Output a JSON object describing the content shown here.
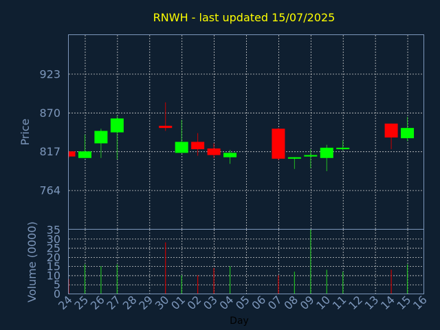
{
  "chart_data": {
    "type": "candlestick",
    "title": "RNWH - last updated 15/07/2025",
    "xlabel": "Day",
    "ylabel_price": "Price",
    "ylabel_volume": "Volume (0000)",
    "x_ticks": [
      "24",
      "25",
      "26",
      "27",
      "28",
      "29",
      "30",
      "01",
      "02",
      "03",
      "04",
      "05",
      "06",
      "07",
      "08",
      "09",
      "10",
      "11",
      "12",
      "13",
      "14",
      "15",
      "16"
    ],
    "price_ticks": [
      764,
      817,
      870,
      923
    ],
    "price_ylim": [
      711,
      976
    ],
    "volume_ticks": [
      0,
      5,
      10,
      15,
      20,
      25,
      30,
      35
    ],
    "volume_ylim": [
      0,
      35
    ],
    "grid": true,
    "colors": {
      "up": "#00ff00",
      "down": "#ff0000",
      "title": "#ffff00",
      "axis": "#7d97bb",
      "background": "#0f1f30"
    },
    "candles": [
      {
        "day": "24",
        "index": 0,
        "open": 817,
        "close": 810,
        "high": 817,
        "low": 808,
        "volume": 8
      },
      {
        "day": "25",
        "index": 1,
        "open": 808,
        "close": 817,
        "high": 840,
        "low": 808,
        "volume": 16
      },
      {
        "day": "26",
        "index": 2,
        "open": 828,
        "close": 845,
        "high": 848,
        "low": 808,
        "volume": 15
      },
      {
        "day": "27",
        "index": 3,
        "open": 843,
        "close": 862,
        "high": 866,
        "low": 806,
        "volume": 16
      },
      {
        "day": "30",
        "index": 6,
        "open": 852,
        "close": 849,
        "high": 884,
        "low": 845,
        "volume": 28
      },
      {
        "day": "01",
        "index": 7,
        "open": 815,
        "close": 830,
        "high": 860,
        "low": 815,
        "volume": 10
      },
      {
        "day": "02",
        "index": 8,
        "open": 830,
        "close": 820,
        "high": 842,
        "low": 811,
        "volume": 10
      },
      {
        "day": "03",
        "index": 9,
        "open": 821,
        "close": 812,
        "high": 828,
        "low": 808,
        "volume": 14
      },
      {
        "day": "04",
        "index": 10,
        "open": 809,
        "close": 815,
        "high": 819,
        "low": 800,
        "volume": 15
      },
      {
        "day": "07",
        "index": 13,
        "open": 848,
        "close": 807,
        "high": 849,
        "low": 805,
        "volume": 10
      },
      {
        "day": "08",
        "index": 14,
        "open": 807,
        "close": 809,
        "high": 809,
        "low": 793,
        "volume": 12
      },
      {
        "day": "09",
        "index": 15,
        "open": 810,
        "close": 812,
        "high": 820,
        "low": 794,
        "volume": 35
      },
      {
        "day": "10",
        "index": 16,
        "open": 808,
        "close": 822,
        "high": 826,
        "low": 790,
        "volume": 13
      },
      {
        "day": "11",
        "index": 17,
        "open": 820,
        "close": 822,
        "high": 832,
        "low": 818,
        "volume": 12
      },
      {
        "day": "14",
        "index": 20,
        "open": 855,
        "close": 836,
        "high": 855,
        "low": 820,
        "volume": 13
      },
      {
        "day": "15",
        "index": 21,
        "open": 835,
        "close": 849,
        "high": 864,
        "low": 831,
        "volume": 16
      }
    ]
  }
}
